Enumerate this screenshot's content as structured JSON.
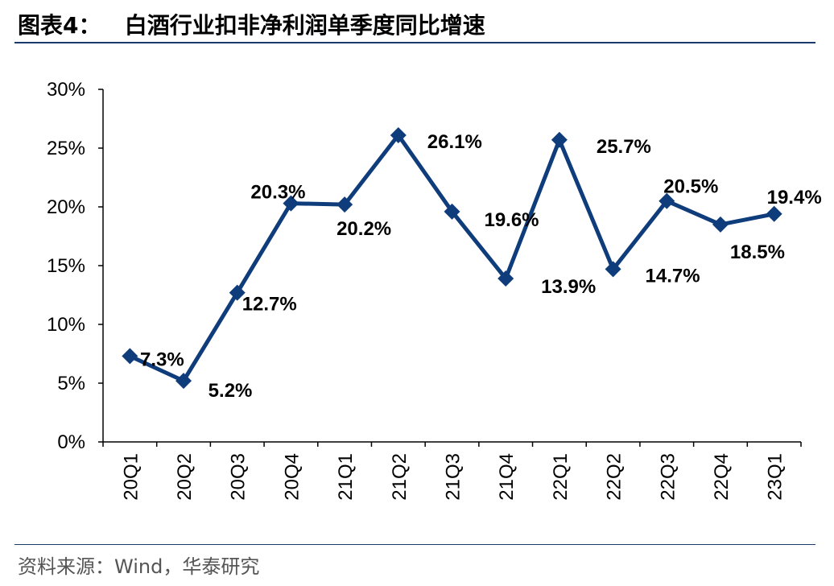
{
  "header": {
    "title": "图表4：   白酒行业扣非净利润单季度同比增速"
  },
  "footer": {
    "source": "资料来源：Wind，华泰研究"
  },
  "chart_data": {
    "type": "line",
    "title": "图表4：   白酒行业扣非净利润单季度同比增速",
    "xlabel": "",
    "ylabel": "",
    "categories": [
      "20Q1",
      "20Q2",
      "20Q3",
      "20Q4",
      "21Q1",
      "21Q2",
      "21Q3",
      "21Q4",
      "22Q1",
      "22Q2",
      "22Q3",
      "22Q4",
      "23Q1"
    ],
    "values": [
      7.3,
      5.2,
      12.7,
      20.3,
      20.2,
      26.1,
      19.6,
      13.9,
      25.7,
      14.7,
      20.5,
      18.5,
      19.4
    ],
    "data_labels": [
      "7.3%",
      "5.2%",
      "12.7%",
      "20.3%",
      "20.2%",
      "26.1%",
      "19.6%",
      "13.9%",
      "25.7%",
      "14.7%",
      "20.5%",
      "18.5%",
      "19.4%"
    ],
    "y_ticks": [
      "0%",
      "5%",
      "10%",
      "15%",
      "20%",
      "25%",
      "30%"
    ],
    "ylim": [
      0,
      30
    ],
    "grid": false,
    "legend": "none",
    "line_color": "#0f3c7a",
    "marker": "diamond"
  }
}
